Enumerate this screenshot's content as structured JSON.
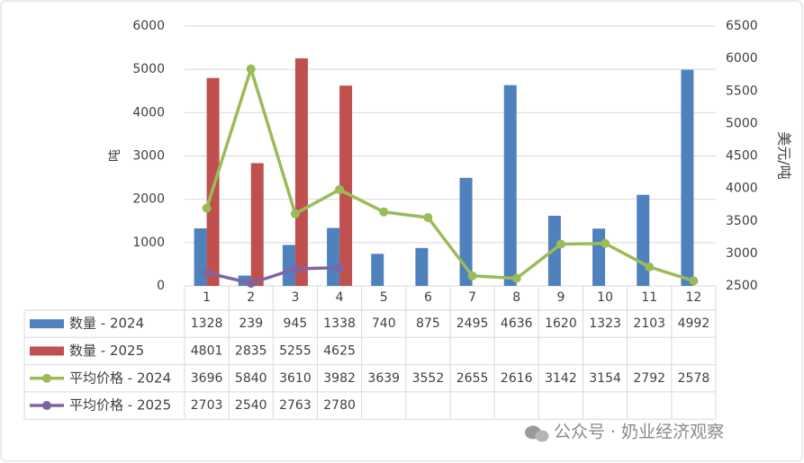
{
  "chart_data": {
    "type": "bar",
    "categories": [
      "1",
      "2",
      "3",
      "4",
      "5",
      "6",
      "7",
      "8",
      "9",
      "10",
      "11",
      "12"
    ],
    "series": [
      {
        "name": "数量 - 2024",
        "type": "bar",
        "color": "#4f81bd",
        "values": [
          1328,
          239,
          945,
          1338,
          740,
          875,
          2495,
          4636,
          1620,
          1323,
          2103,
          4992
        ]
      },
      {
        "name": "数量 - 2025",
        "type": "bar",
        "color": "#c0504d",
        "values": [
          4801,
          2835,
          5255,
          4625,
          null,
          null,
          null,
          null,
          null,
          null,
          null,
          null
        ]
      },
      {
        "name": "平均价格 - 2024",
        "type": "line",
        "axis": "y2",
        "color": "#9bbb59",
        "values": [
          3696,
          5840,
          3610,
          3982,
          3639,
          3552,
          2655,
          2616,
          3142,
          3154,
          2792,
          2578
        ]
      },
      {
        "name": "平均价格 - 2025",
        "type": "line",
        "axis": "y2",
        "color": "#8064a2",
        "values": [
          2703,
          2540,
          2763,
          2780,
          null,
          null,
          null,
          null,
          null,
          null,
          null,
          null
        ]
      }
    ],
    "ylabel": "吨",
    "y2label": "美元/吨",
    "ylim": [
      0,
      6000
    ],
    "yticks": [
      0,
      1000,
      2000,
      3000,
      4000,
      5000,
      6000
    ],
    "y2lim": [
      2500,
      6500
    ],
    "y2ticks": [
      2500,
      3000,
      3500,
      4000,
      4500,
      5000,
      5500,
      6000,
      6500
    ],
    "watermark": "公众号 · 奶业经济观察"
  }
}
